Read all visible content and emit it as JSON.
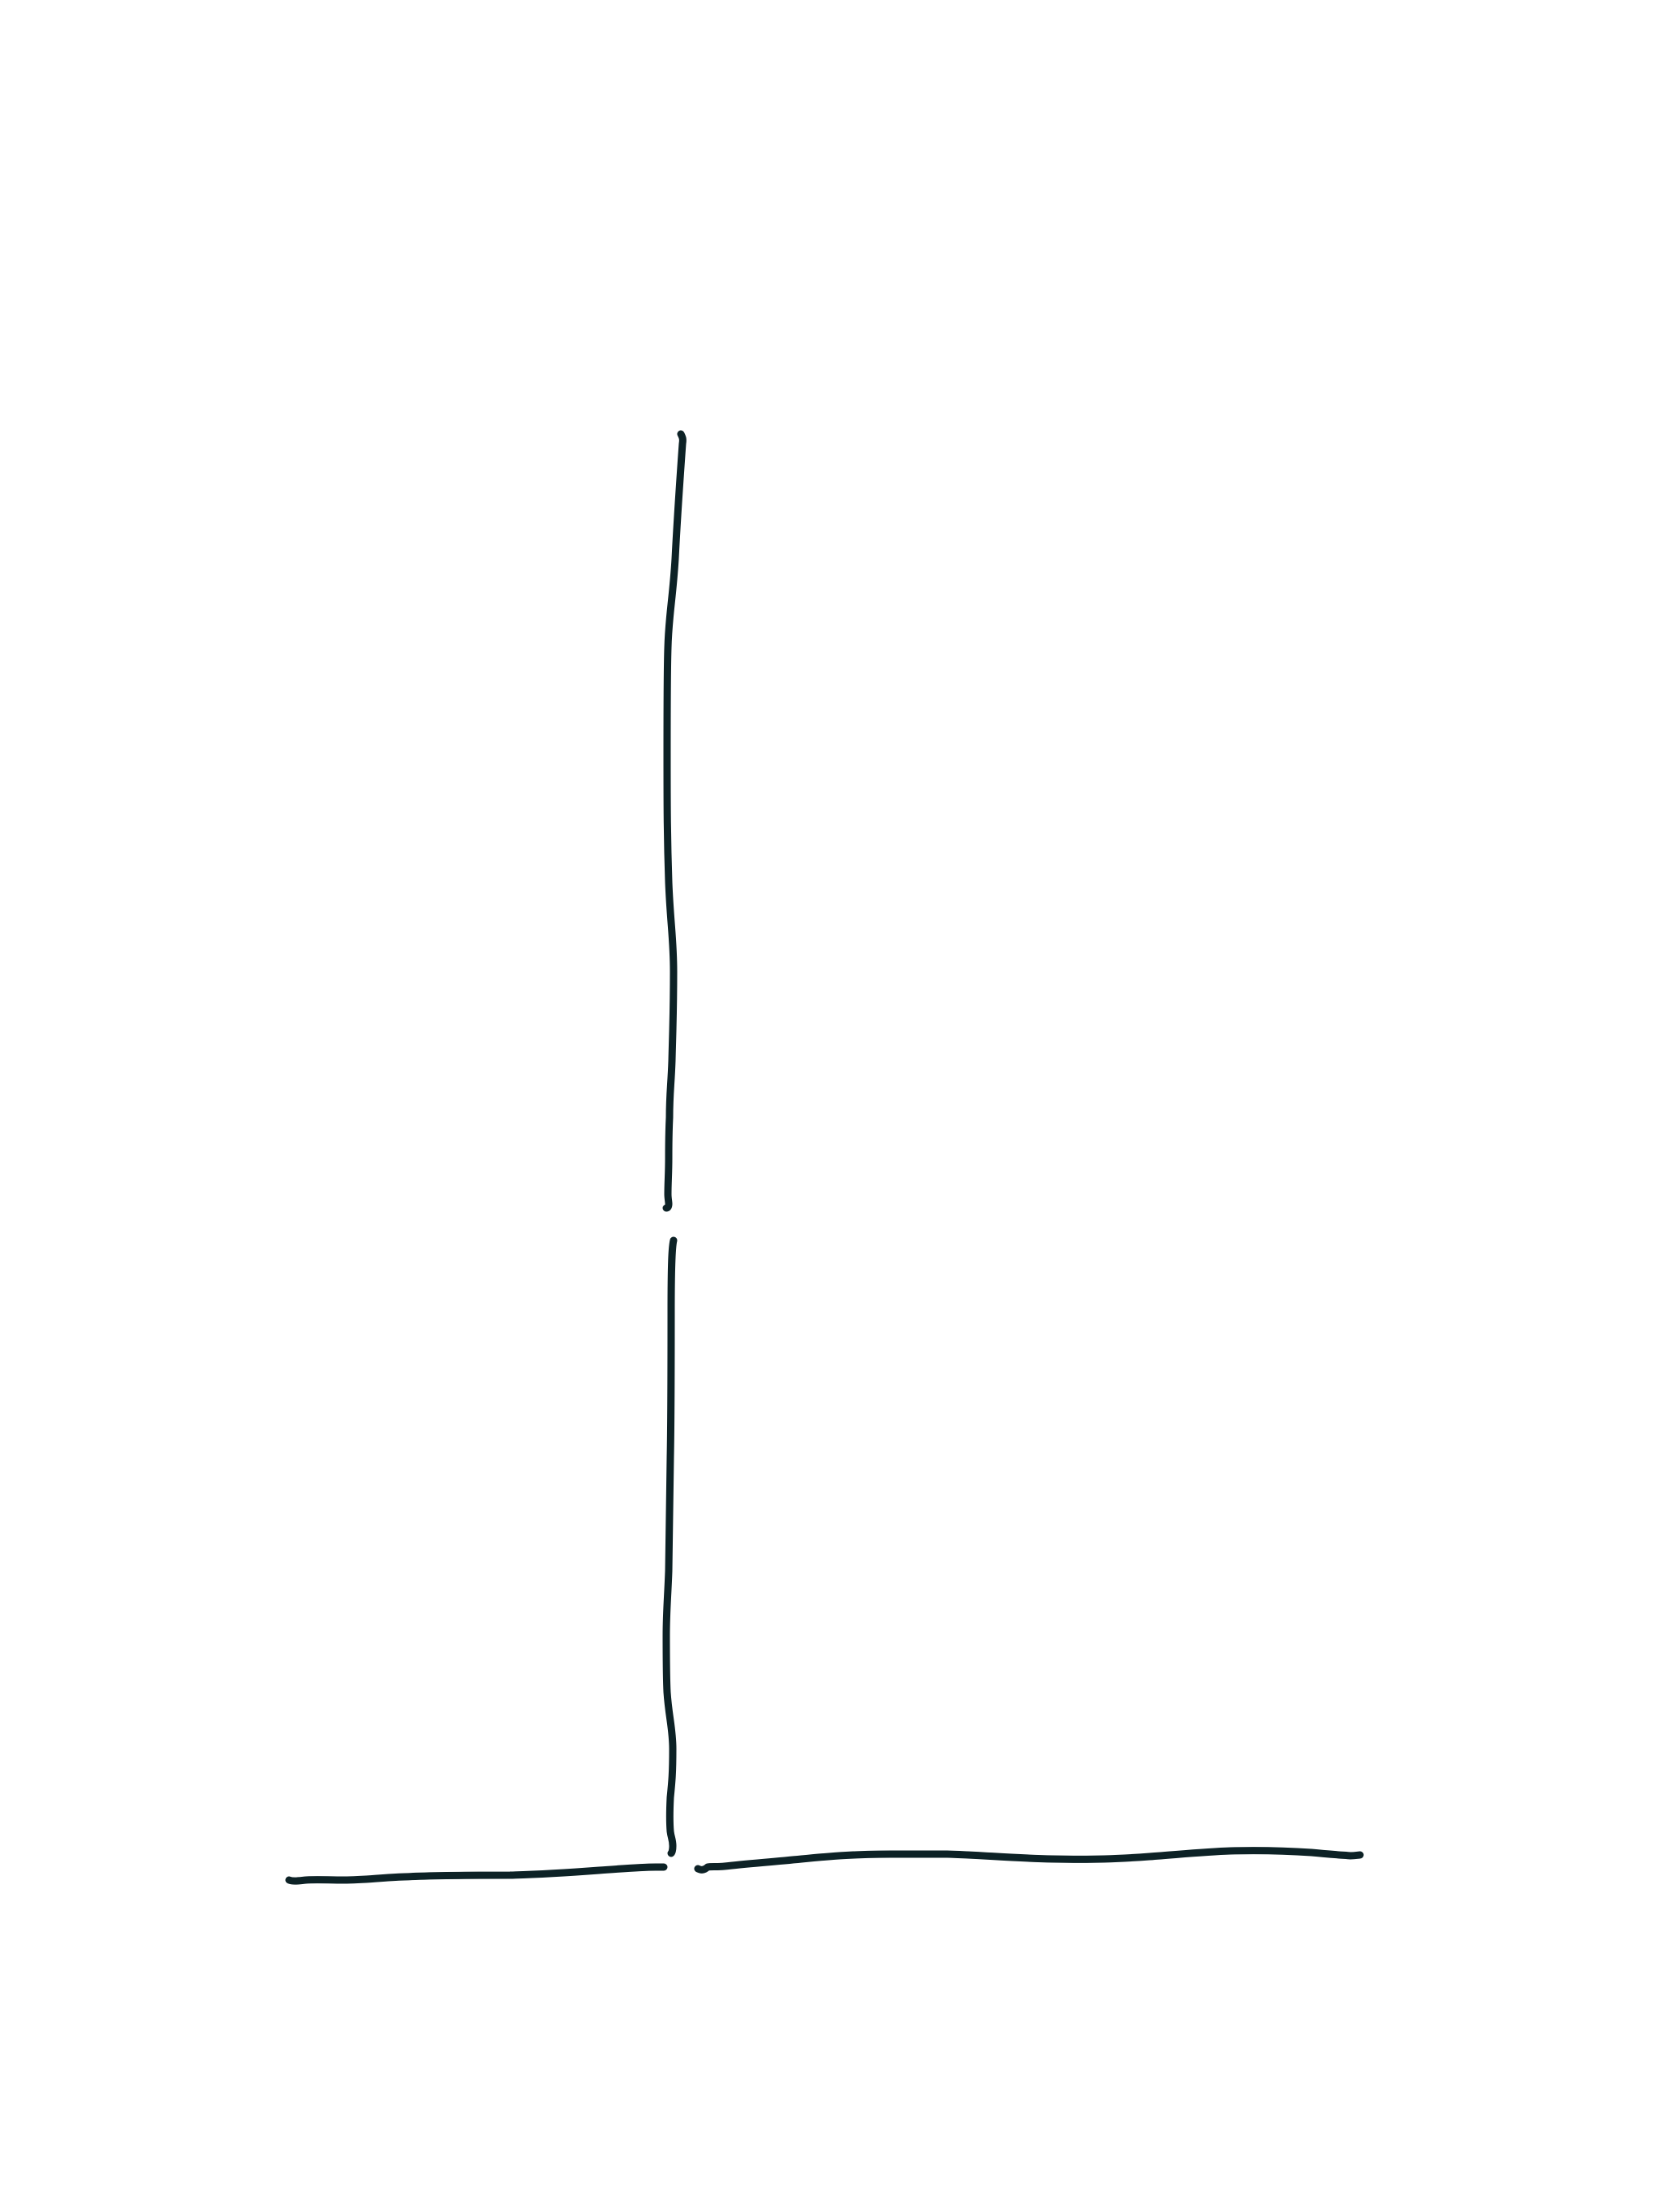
{
  "canvas": {
    "background_color": "#ffffff",
    "ink_color": "#0d2226"
  },
  "strokes": [
    {
      "name": "stroke-vertical-upper"
    },
    {
      "name": "stroke-vertical-lower"
    },
    {
      "name": "stroke-horizontal-left"
    },
    {
      "name": "stroke-horizontal-right"
    }
  ]
}
